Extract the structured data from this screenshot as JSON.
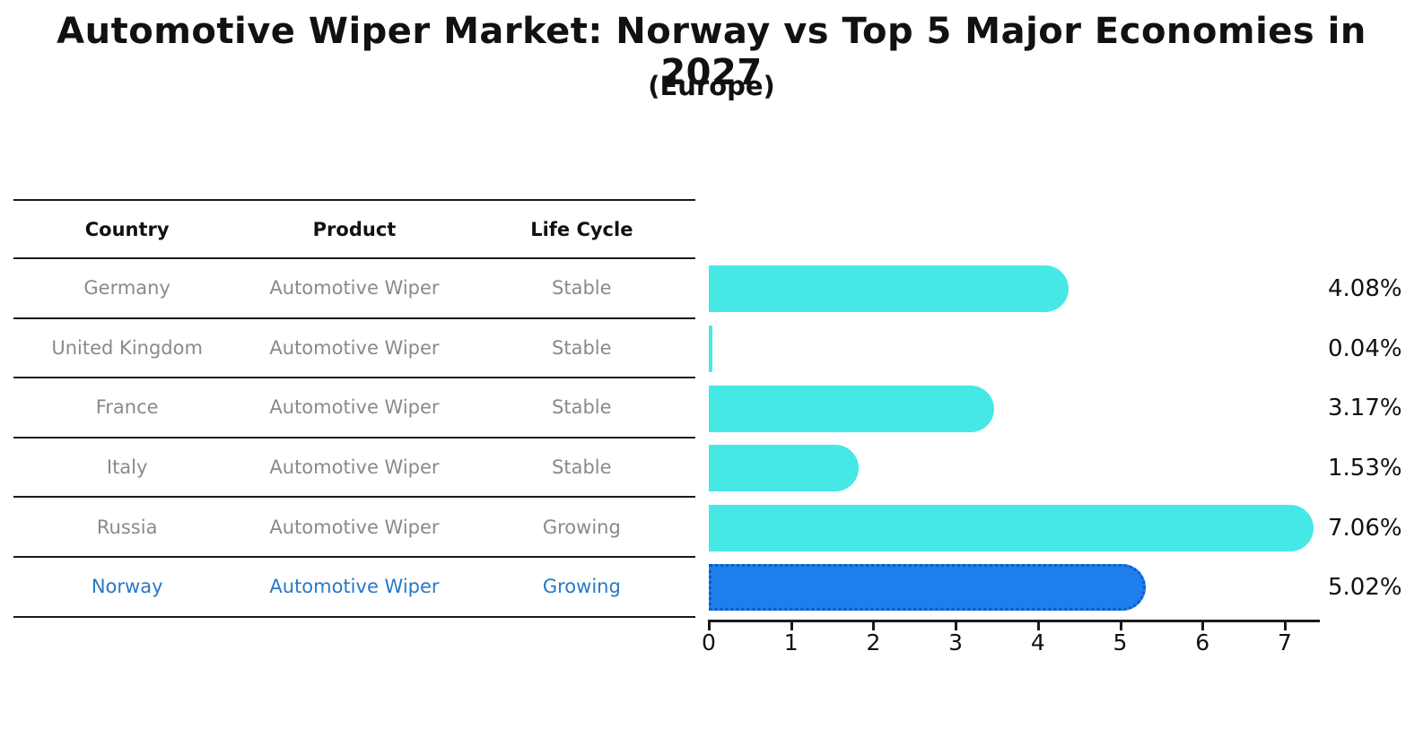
{
  "title": "Automotive Wiper Market: Norway vs Top 5 Major Economies in 2027",
  "subtitle": "(Europe)",
  "colors": {
    "bar_default": "#46E8E6",
    "bar_highlight_fill": "#1C7FEC",
    "bar_highlight_border": "#0E5AC8",
    "row_text": "#8a8a8a",
    "highlight_text": "#2878C8",
    "line_color": "#1a1a1a",
    "label_text": "#111111"
  },
  "table": {
    "headers": [
      "Country",
      "Product",
      "Life Cycle"
    ],
    "rows": [
      {
        "country": "Germany",
        "product": "Automotive Wiper",
        "life_cycle": "Stable",
        "highlight": false
      },
      {
        "country": "United Kingdom",
        "product": "Automotive Wiper",
        "life_cycle": "Stable",
        "highlight": false
      },
      {
        "country": "France",
        "product": "Automotive Wiper",
        "life_cycle": "Stable",
        "highlight": false
      },
      {
        "country": "Italy",
        "product": "Automotive Wiper",
        "life_cycle": "Stable",
        "highlight": false
      },
      {
        "country": "Russia",
        "product": "Automotive Wiper",
        "life_cycle": "Growing",
        "highlight": false
      },
      {
        "country": "Norway",
        "product": "Automotive Wiper",
        "life_cycle": "Growing",
        "highlight": true
      }
    ]
  },
  "chart_data": {
    "type": "bar",
    "orientation": "horizontal",
    "title": "Automotive Wiper Market: Norway vs Top 5 Major Economies in 2027",
    "subtitle": "(Europe)",
    "categories": [
      "Germany",
      "United Kingdom",
      "France",
      "Italy",
      "Russia",
      "Norway"
    ],
    "values": [
      4.08,
      0.04,
      3.17,
      1.53,
      7.06,
      5.02
    ],
    "value_labels": [
      "4.08%",
      "0.04%",
      "3.17%",
      "1.53%",
      "7.06%",
      "5.02%"
    ],
    "highlight_category": "Norway",
    "xlim": [
      0,
      7.5
    ],
    "x_ticks": [
      0,
      1,
      2,
      3,
      4,
      5,
      6,
      7
    ],
    "x_tick_labels": [
      "0",
      "1",
      "2",
      "3",
      "4",
      "5",
      "6",
      "7"
    ],
    "grid": false,
    "legend": "none"
  }
}
